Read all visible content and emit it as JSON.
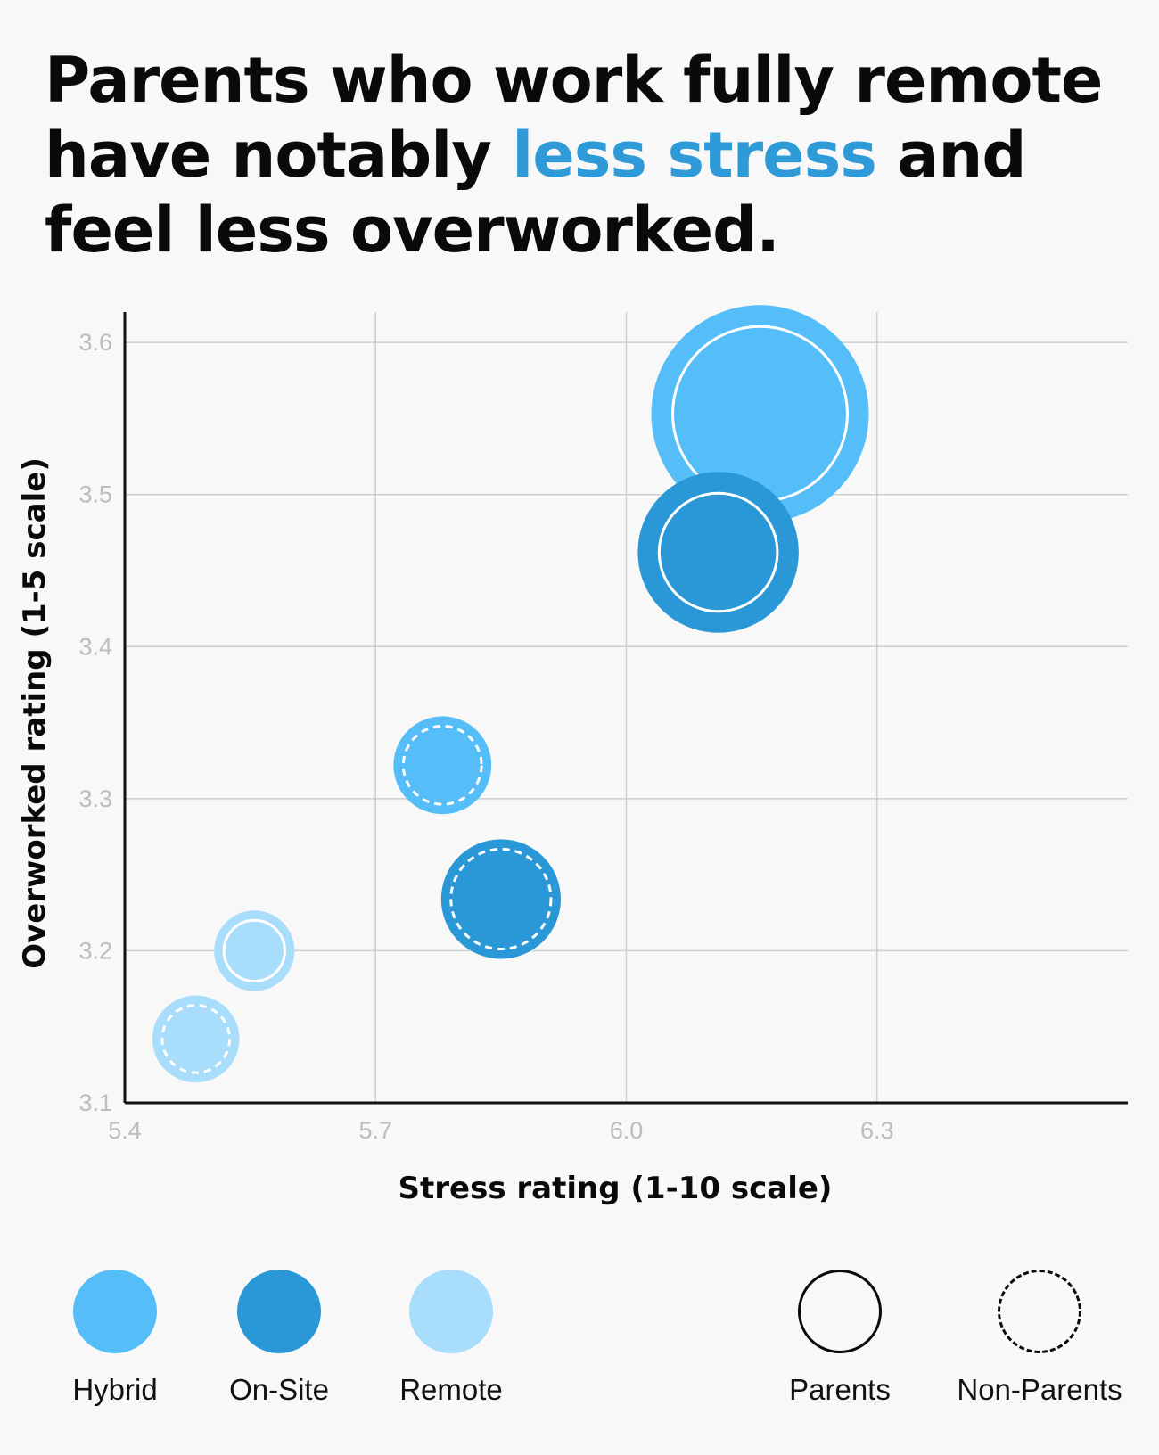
{
  "headline": {
    "part1": "Parents who work fully remote have notably ",
    "highlight": "less stress",
    "part2": " and feel less overworked."
  },
  "colors": {
    "hybrid": "#55bef8",
    "onsite": "#2a98d7",
    "remote": "#a8ddfc",
    "highlight": "#2e9ad8"
  },
  "chart_data": {
    "type": "bubble",
    "xlabel": "Stress rating (1-10 scale)",
    "ylabel": "Overworked rating (1-5 scale)",
    "xlim": [
      5.4,
      6.6
    ],
    "ylim": [
      3.1,
      3.62
    ],
    "xticks": [
      "5.4",
      "5.7",
      "6.0",
      "6.3"
    ],
    "yticks": [
      "3.1",
      "3.2",
      "3.3",
      "3.4",
      "3.5",
      "3.6"
    ],
    "grid": true,
    "points": [
      {
        "name": "hybrid-parents",
        "x": 6.16,
        "y": 3.553,
        "size": 1.0,
        "color_group": "hybrid",
        "style": "solid"
      },
      {
        "name": "onsite-parents",
        "x": 6.11,
        "y": 3.462,
        "size": 0.74,
        "color_group": "onsite",
        "style": "solid"
      },
      {
        "name": "hybrid-non-parents",
        "x": 5.78,
        "y": 3.322,
        "size": 0.45,
        "color_group": "hybrid",
        "style": "dashed"
      },
      {
        "name": "onsite-non-parents",
        "x": 5.85,
        "y": 3.234,
        "size": 0.55,
        "color_group": "onsite",
        "style": "dashed"
      },
      {
        "name": "remote-parents",
        "x": 5.555,
        "y": 3.2,
        "size": 0.37,
        "color_group": "remote",
        "style": "solid"
      },
      {
        "name": "remote-non-parents",
        "x": 5.485,
        "y": 3.142,
        "size": 0.4,
        "color_group": "remote",
        "style": "dashed"
      }
    ]
  },
  "legend": {
    "colors": [
      {
        "label": "Hybrid",
        "color": "#55bef8"
      },
      {
        "label": "On-Site",
        "color": "#2a98d7"
      },
      {
        "label": "Remote",
        "color": "#a8ddfc"
      }
    ],
    "styles": [
      {
        "label": "Parents",
        "style": "solid"
      },
      {
        "label": "Non-Parents",
        "style": "dashed"
      }
    ]
  }
}
